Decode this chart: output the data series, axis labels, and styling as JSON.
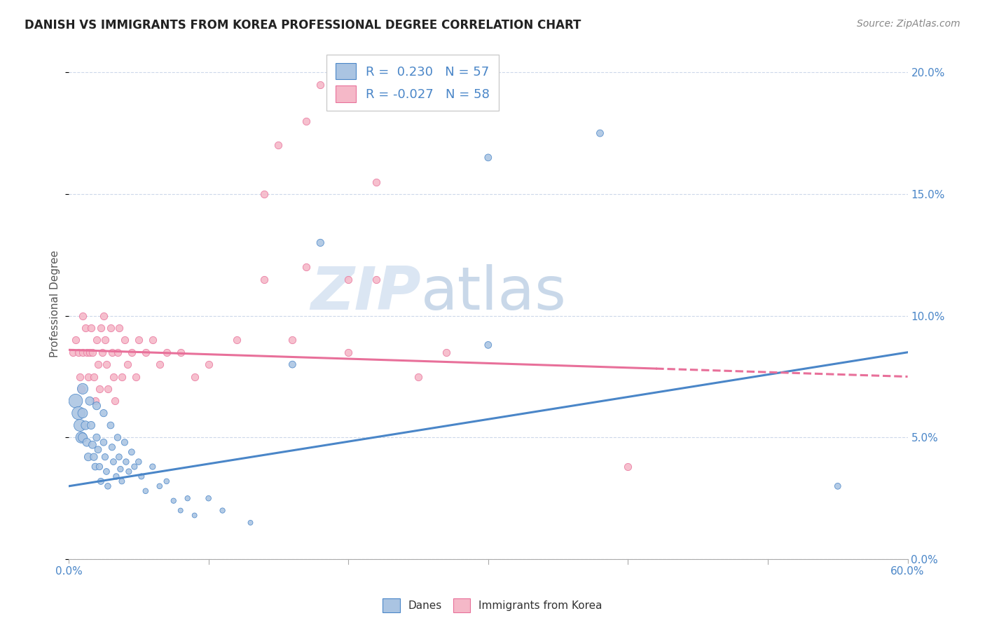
{
  "title": "DANISH VS IMMIGRANTS FROM KOREA PROFESSIONAL DEGREE CORRELATION CHART",
  "source": "Source: ZipAtlas.com",
  "ylabel": "Professional Degree",
  "watermark_zip": "ZIP",
  "watermark_atlas": "atlas",
  "legend_dane_R": " 0.230",
  "legend_dane_N": "57",
  "legend_korea_R": "-0.027",
  "legend_korea_N": "58",
  "dane_color": "#aac4e2",
  "korea_color": "#f5b8c8",
  "dane_line_color": "#4a86c8",
  "korea_line_color": "#e8709a",
  "background_color": "#ffffff",
  "grid_color": "#c8d4e8",
  "xlim": [
    0.0,
    0.6
  ],
  "ylim": [
    0.0,
    0.21
  ],
  "dane_trend_start_y": 0.03,
  "dane_trend_end_y": 0.085,
  "korea_trend_start_y": 0.086,
  "korea_trend_end_y": 0.075,
  "korea_trend_dash_x": 0.42,
  "dane_scatter_x": [
    0.005,
    0.007,
    0.008,
    0.009,
    0.01,
    0.01,
    0.01,
    0.012,
    0.013,
    0.014,
    0.015,
    0.016,
    0.017,
    0.018,
    0.019,
    0.02,
    0.02,
    0.021,
    0.022,
    0.023,
    0.025,
    0.025,
    0.026,
    0.027,
    0.028,
    0.03,
    0.031,
    0.032,
    0.034,
    0.035,
    0.036,
    0.037,
    0.038,
    0.04,
    0.041,
    0.043,
    0.045,
    0.047,
    0.05,
    0.052,
    0.055,
    0.06,
    0.065,
    0.07,
    0.075,
    0.08,
    0.085,
    0.09,
    0.1,
    0.11,
    0.13,
    0.16,
    0.18,
    0.3,
    0.38,
    0.55,
    0.3
  ],
  "dane_scatter_y": [
    0.065,
    0.06,
    0.055,
    0.05,
    0.07,
    0.06,
    0.05,
    0.055,
    0.048,
    0.042,
    0.065,
    0.055,
    0.047,
    0.042,
    0.038,
    0.063,
    0.05,
    0.045,
    0.038,
    0.032,
    0.06,
    0.048,
    0.042,
    0.036,
    0.03,
    0.055,
    0.046,
    0.04,
    0.034,
    0.05,
    0.042,
    0.037,
    0.032,
    0.048,
    0.04,
    0.036,
    0.044,
    0.038,
    0.04,
    0.034,
    0.028,
    0.038,
    0.03,
    0.032,
    0.024,
    0.02,
    0.025,
    0.018,
    0.025,
    0.02,
    0.015,
    0.08,
    0.13,
    0.165,
    0.175,
    0.03,
    0.088
  ],
  "dane_scatter_size": [
    200,
    180,
    150,
    130,
    120,
    100,
    90,
    80,
    70,
    65,
    75,
    65,
    60,
    55,
    50,
    65,
    55,
    50,
    45,
    42,
    55,
    48,
    44,
    40,
    38,
    50,
    44,
    40,
    36,
    46,
    40,
    36,
    33,
    44,
    38,
    35,
    40,
    35,
    38,
    34,
    30,
    35,
    30,
    30,
    28,
    25,
    28,
    25,
    30,
    28,
    25,
    50,
    55,
    50,
    50,
    40,
    50
  ],
  "korea_scatter_x": [
    0.003,
    0.005,
    0.007,
    0.008,
    0.009,
    0.01,
    0.01,
    0.012,
    0.013,
    0.014,
    0.015,
    0.016,
    0.017,
    0.018,
    0.019,
    0.02,
    0.021,
    0.022,
    0.023,
    0.024,
    0.025,
    0.026,
    0.027,
    0.028,
    0.03,
    0.031,
    0.032,
    0.033,
    0.035,
    0.036,
    0.038,
    0.04,
    0.042,
    0.045,
    0.048,
    0.05,
    0.055,
    0.06,
    0.065,
    0.07,
    0.08,
    0.09,
    0.1,
    0.12,
    0.14,
    0.17,
    0.2,
    0.22,
    0.25,
    0.27,
    0.15,
    0.17,
    0.18,
    0.22,
    0.4,
    0.16,
    0.2,
    0.14
  ],
  "korea_scatter_y": [
    0.085,
    0.09,
    0.085,
    0.075,
    0.07,
    0.1,
    0.085,
    0.095,
    0.085,
    0.075,
    0.085,
    0.095,
    0.085,
    0.075,
    0.065,
    0.09,
    0.08,
    0.07,
    0.095,
    0.085,
    0.1,
    0.09,
    0.08,
    0.07,
    0.095,
    0.085,
    0.075,
    0.065,
    0.085,
    0.095,
    0.075,
    0.09,
    0.08,
    0.085,
    0.075,
    0.09,
    0.085,
    0.09,
    0.08,
    0.085,
    0.085,
    0.075,
    0.08,
    0.09,
    0.115,
    0.12,
    0.115,
    0.115,
    0.075,
    0.085,
    0.17,
    0.18,
    0.195,
    0.155,
    0.038,
    0.09,
    0.085,
    0.15
  ]
}
